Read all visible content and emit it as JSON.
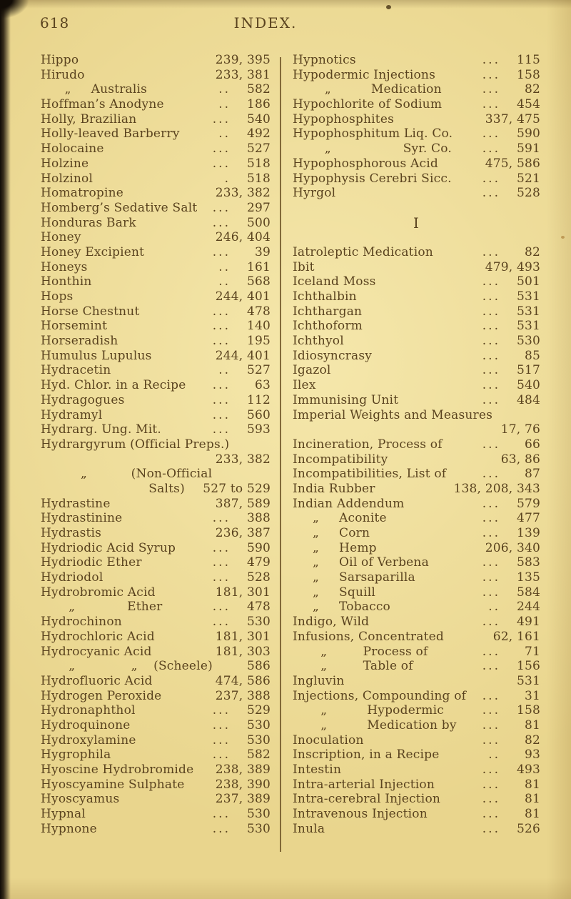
{
  "page": {
    "number": "618",
    "title": "INDEX."
  },
  "colors": {
    "paper": "#e9d58d",
    "ink": "#5a431f",
    "divider": "#6e5527",
    "scan_edge": "#0f0a06"
  },
  "columns": [
    {
      "lines": [
        {
          "l": "Hippo",
          "d": "",
          "p": "239, 395"
        },
        {
          "l": "Hirudo",
          "d": "",
          "p": "233, 381"
        },
        {
          "l": "      „     Australis",
          "d": "..",
          "p": "582"
        },
        {
          "l": "Hoffman’s Anodyne",
          "d": "..",
          "p": "186"
        },
        {
          "l": "Holly, Brazilian",
          "d": "...",
          "p": "540"
        },
        {
          "l": "Holly-leaved Barberry",
          "d": "..",
          "p": "492"
        },
        {
          "l": "Holocaine",
          "d": "...",
          "p": "527"
        },
        {
          "l": "Holzine",
          "d": "...",
          "p": "518"
        },
        {
          "l": "Holzinol",
          "d": ".",
          "p": "518"
        },
        {
          "l": "Homatropine",
          "d": "",
          "p": "233, 382"
        },
        {
          "l": "Homberg’s Sedative Salt",
          "d": "...",
          "p": "297"
        },
        {
          "l": "Honduras Bark",
          "d": "...",
          "p": "500"
        },
        {
          "l": "Honey",
          "d": "",
          "p": "246, 404"
        },
        {
          "l": "Honey Excipient",
          "d": "...",
          "p": "39"
        },
        {
          "l": "Honeys",
          "d": "..",
          "p": "161"
        },
        {
          "l": "Honthin",
          "d": "..",
          "p": "568"
        },
        {
          "l": "Hops",
          "d": "",
          "p": "244, 401"
        },
        {
          "l": "Horse Chestnut",
          "d": "...",
          "p": "478"
        },
        {
          "l": "Horsemint",
          "d": "...",
          "p": "140"
        },
        {
          "l": "Horseradish",
          "d": "...",
          "p": "195"
        },
        {
          "l": "Humulus Lupulus",
          "d": "",
          "p": "244, 401"
        },
        {
          "l": "Hydracetin",
          "d": "..",
          "p": "527"
        },
        {
          "l": "Hyd. Chlor. in a Recipe",
          "d": "...",
          "p": "63"
        },
        {
          "l": "Hydragogues",
          "d": "...",
          "p": "112"
        },
        {
          "l": "Hydramyl",
          "d": "...",
          "p": "560"
        },
        {
          "l": "Hydrarg. Ung. Mit.",
          "d": "...",
          "p": "593"
        },
        {
          "l": "Hydrargyrum (Official Preps.)",
          "d": "",
          "p": ""
        },
        {
          "l": "",
          "d": "",
          "p": "233, 382"
        },
        {
          "l": "          „           (Non-Official",
          "d": "",
          "p": ""
        },
        {
          "l": "                           Salts)",
          "d": "",
          "p": "527 to 529"
        },
        {
          "l": "Hydrastine",
          "d": "",
          "p": "387, 589"
        },
        {
          "l": "Hydrastinine",
          "d": "...",
          "p": "388"
        },
        {
          "l": "Hydrastis",
          "d": "",
          "p": "236, 387"
        },
        {
          "l": "Hydriodic Acid Syrup",
          "d": "...",
          "p": "590"
        },
        {
          "l": "Hydriodic Ether",
          "d": "...",
          "p": "479"
        },
        {
          "l": "Hydriodol",
          "d": "...",
          "p": "528"
        },
        {
          "l": "Hydrobromic Acid",
          "d": "",
          "p": "181, 301"
        },
        {
          "l": "       „             Ether",
          "d": "...",
          "p": "478"
        },
        {
          "l": "Hydrochinon",
          "d": "...",
          "p": "530"
        },
        {
          "l": "Hydrochloric Acid",
          "d": "",
          "p": "181, 301"
        },
        {
          "l": "Hydrocyanic Acid",
          "d": "",
          "p": "181, 303"
        },
        {
          "l": "       „              „    (Scheele)",
          "d": "",
          "p": "586"
        },
        {
          "l": "Hydrofluoric Acid",
          "d": "",
          "p": "474, 586"
        },
        {
          "l": "Hydrogen Peroxide",
          "d": "",
          "p": "237, 388"
        },
        {
          "l": "Hydronaphthol",
          "d": "...",
          "p": "529"
        },
        {
          "l": "Hydroquinone",
          "d": "...",
          "p": "530"
        },
        {
          "l": "Hydroxylamine",
          "d": "...",
          "p": "530"
        },
        {
          "l": "Hygrophila",
          "d": "...",
          "p": "582"
        },
        {
          "l": "Hyoscine Hydrobromide",
          "d": "",
          "p": "238, 389"
        },
        {
          "l": "Hyoscyamine Sulphate",
          "d": "",
          "p": "238, 390"
        },
        {
          "l": "Hyoscyamus",
          "d": "",
          "p": "237, 389"
        },
        {
          "l": "Hypnal",
          "d": "...",
          "p": "530"
        },
        {
          "l": "Hypnone",
          "d": "...",
          "p": "530"
        }
      ]
    },
    {
      "lines": [
        {
          "l": "Hypnotics",
          "d": "...",
          "p": "115"
        },
        {
          "l": "Hypodermic Injections",
          "d": "...",
          "p": "158"
        },
        {
          "l": "        „          Medication",
          "d": "...",
          "p": "82"
        },
        {
          "l": "Hypochlorite of Sodium",
          "d": "...",
          "p": "454"
        },
        {
          "l": "Hypophosphites",
          "d": "",
          "p": "337, 475"
        },
        {
          "l": "Hypophosphitum Liq. Co.",
          "d": "...",
          "p": "590"
        },
        {
          "l": "        „                  Syr. Co.",
          "d": "...",
          "p": "591"
        },
        {
          "l": "Hypophosphorous Acid",
          "d": "",
          "p": "475, 586"
        },
        {
          "l": "Hypophysis Cerebri Sicc.",
          "d": "...",
          "p": "521"
        },
        {
          "l": "Hyrgol",
          "d": "...",
          "p": "528"
        },
        {
          "t": "s"
        },
        {
          "t": "h",
          "l": "I"
        },
        {
          "t": "s"
        },
        {
          "l": "Iatroleptic Medication",
          "d": "...",
          "p": "82"
        },
        {
          "l": "Ibit",
          "d": "",
          "p": "479, 493"
        },
        {
          "l": "Iceland Moss",
          "d": "...",
          "p": "501"
        },
        {
          "l": "Ichthalbin",
          "d": "...",
          "p": "531"
        },
        {
          "l": "Ichthargan",
          "d": "...",
          "p": "531"
        },
        {
          "l": "Ichthoform",
          "d": "...",
          "p": "531"
        },
        {
          "l": "Ichthyol",
          "d": "...",
          "p": "530"
        },
        {
          "l": "Idiosyncrasy",
          "d": "...",
          "p": "85"
        },
        {
          "l": "Igazol",
          "d": "...",
          "p": "517"
        },
        {
          "l": "Ilex",
          "d": "...",
          "p": "540"
        },
        {
          "l": "Immunising Unit",
          "d": "...",
          "p": "484"
        },
        {
          "l": "Imperial Weights and Measures",
          "d": "",
          "p": ""
        },
        {
          "l": "",
          "d": "",
          "p": "17, 76"
        },
        {
          "l": "Incineration, Process of",
          "d": "...",
          "p": "66"
        },
        {
          "l": "Incompatibility",
          "d": "",
          "p": "63, 86"
        },
        {
          "l": "Incompatibilities, List of",
          "d": "...",
          "p": "87"
        },
        {
          "l": "India Rubber",
          "d": "",
          "p": "138, 208, 343"
        },
        {
          "l": "Indian Addendum",
          "d": "...",
          "p": "579"
        },
        {
          "l": "     „     Aconite",
          "d": "...",
          "p": "477"
        },
        {
          "l": "     „     Corn",
          "d": "...",
          "p": "139"
        },
        {
          "l": "     „     Hemp",
          "d": "",
          "p": "206, 340"
        },
        {
          "l": "     „     Oil of Verbena",
          "d": "...",
          "p": "583"
        },
        {
          "l": "     „     Sarsaparilla",
          "d": "...",
          "p": "135"
        },
        {
          "l": "     „     Squill",
          "d": "...",
          "p": "584"
        },
        {
          "l": "     „     Tobacco",
          "d": "..",
          "p": "244"
        },
        {
          "l": "Indigo, Wild",
          "d": "...",
          "p": "491"
        },
        {
          "l": "Infusions, Concentrated",
          "d": "",
          "p": "62, 161"
        },
        {
          "l": "       „         Process of",
          "d": "...",
          "p": "71"
        },
        {
          "l": "       „         Table of",
          "d": "...",
          "p": "156"
        },
        {
          "l": "Ingluvin",
          "d": "",
          "p": "531"
        },
        {
          "l": "Injections, Compounding of",
          "d": "...",
          "p": "31"
        },
        {
          "l": "       „          Hypodermic",
          "d": "...",
          "p": "158"
        },
        {
          "l": "       „          Medication by",
          "d": "...",
          "p": "81"
        },
        {
          "l": "Inoculation",
          "d": "...",
          "p": "82"
        },
        {
          "l": "Inscription, in a Recipe",
          "d": "..",
          "p": "93"
        },
        {
          "l": "Intestin",
          "d": "...",
          "p": "493"
        },
        {
          "l": "Intra-arterial Injection",
          "d": "...",
          "p": "81"
        },
        {
          "l": "Intra-cerebral Injection",
          "d": "...",
          "p": "81"
        },
        {
          "l": "Intravenous Injection",
          "d": "...",
          "p": "81"
        },
        {
          "l": "Inula",
          "d": "...",
          "p": "526"
        }
      ]
    }
  ]
}
